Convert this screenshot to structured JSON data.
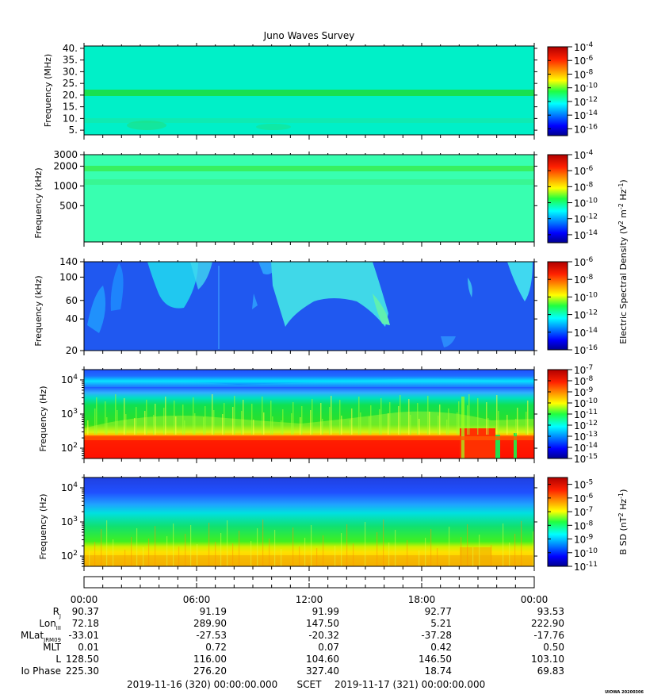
{
  "chart_data": {
    "type": "heatmap",
    "title": "Juno Waves Survey",
    "time_axis": {
      "tick_labels": [
        "00:00",
        "06:00",
        "12:00",
        "18:00",
        "00:00"
      ],
      "start_label": "2019-11-16 (320) 00:00:00.000",
      "mid_label": "SCET",
      "end_label": "2019-11-17 (321) 00:00:00.000"
    },
    "panels": [
      {
        "id": "p1",
        "ylabel": "Frequency (MHz)",
        "ytick_labels": [
          "40.",
          "35.",
          "30.",
          "25.",
          "20.",
          "15.",
          "10.",
          "5."
        ],
        "yscale": "linear",
        "ylim": [
          3,
          41
        ],
        "colorbar_ticks": [
          [
            "10",
            "-4"
          ],
          [
            "10",
            "-6"
          ],
          [
            "10",
            "-8"
          ],
          [
            "10",
            "-10"
          ],
          [
            "10",
            "-12"
          ],
          [
            "10",
            "-14"
          ],
          [
            "10",
            "-16"
          ]
        ],
        "colorbar_range_log10": [
          -17,
          -4
        ],
        "background": "#00f0c8",
        "features": [
          {
            "desc": "band",
            "y_range_mhz": [
              20.5,
              22.5
            ],
            "color": "#18e050"
          }
        ]
      },
      {
        "id": "p2",
        "ylabel": "Frequency (kHz)",
        "ytick_labels": [
          "3000",
          "2000",
          "1000",
          "500"
        ],
        "yscale": "log",
        "ylim_khz": [
          140,
          3000
        ],
        "colorbar_ticks": [
          [
            "10",
            "-4"
          ],
          [
            "10",
            "-6"
          ],
          [
            "10",
            "-8"
          ],
          [
            "10",
            "-10"
          ],
          [
            "10",
            "-12"
          ],
          [
            "10",
            "-14"
          ]
        ],
        "colorbar_range_log10": [
          -15,
          -4
        ],
        "background": "#30ffb0",
        "features": [
          {
            "desc": "band",
            "y_range_khz": [
              1600,
              1800
            ],
            "color": "#30f070"
          },
          {
            "desc": "band",
            "y_range_khz": [
              1000,
              1150
            ],
            "color": "#30f080"
          }
        ]
      },
      {
        "id": "p3",
        "ylabel": "Frequency (kHz)",
        "ytick_labels": [
          "140",
          "100",
          "60",
          "40",
          "20"
        ],
        "yscale": "log",
        "ylim_khz": [
          20,
          140
        ],
        "colorbar_ticks": [
          [
            "10",
            "-6"
          ],
          [
            "10",
            "-8"
          ],
          [
            "10",
            "-10"
          ],
          [
            "10",
            "-12"
          ],
          [
            "10",
            "-14"
          ],
          [
            "10",
            "-16"
          ]
        ],
        "colorbar_range_log10": [
          -16,
          -6
        ],
        "background": "#2060f0"
      },
      {
        "id": "p4",
        "ylabel": "Frequency (Hz)",
        "ytick_labels": [
          [
            "10",
            "4"
          ],
          [
            "10",
            "3"
          ],
          [
            "10",
            "2"
          ]
        ],
        "yscale": "log",
        "ylim_hz": [
          50,
          20000
        ],
        "colorbar_ticks": [
          [
            "10",
            "-7"
          ],
          [
            "10",
            "-8"
          ],
          [
            "10",
            "-9"
          ],
          [
            "10",
            "-10"
          ],
          [
            "10",
            "-11"
          ],
          [
            "10",
            "-12"
          ],
          [
            "10",
            "-13"
          ],
          [
            "10",
            "-14"
          ],
          [
            "10",
            "-15"
          ]
        ],
        "colorbar_range_log10": [
          -15,
          -7
        ]
      },
      {
        "id": "p5",
        "ylabel": "Frequency (Hz)",
        "ytick_labels": [
          [
            "10",
            "4"
          ],
          [
            "10",
            "3"
          ],
          [
            "10",
            "2"
          ]
        ],
        "yscale": "log",
        "ylim_hz": [
          50,
          20000
        ],
        "colorbar_ticks": [
          [
            "10",
            "-5"
          ],
          [
            "10",
            "-6"
          ],
          [
            "10",
            "-7"
          ],
          [
            "10",
            "-8"
          ],
          [
            "10",
            "-9"
          ],
          [
            "10",
            "-10"
          ],
          [
            "10",
            "-11"
          ]
        ],
        "colorbar_range_log10": [
          -11,
          -4.5
        ]
      }
    ],
    "colorbar_side_labels": {
      "electric": "Electric Spectral Density (V2 m-2 Hz-1)",
      "magnetic": "B SD (nT2 Hz-1)"
    },
    "ephemeris": {
      "rows": [
        {
          "label": "R",
          "sub": "J",
          "values": [
            "90.37",
            "91.19",
            "91.99",
            "92.77",
            "93.53"
          ]
        },
        {
          "label": "Lon",
          "sub": "III",
          "values": [
            "72.18",
            "289.90",
            "147.50",
            "5.21",
            "222.90"
          ]
        },
        {
          "label": "MLat",
          "sub": "JRM09",
          "values": [
            "-33.01",
            "-27.53",
            "-20.32",
            "-37.28",
            "-17.76"
          ]
        },
        {
          "label": "MLT",
          "sub": "",
          "values": [
            "0.01",
            "0.72",
            "0.07",
            "0.42",
            "0.50"
          ]
        },
        {
          "label": "L",
          "sub": "",
          "values": [
            "128.50",
            "116.00",
            "104.60",
            "146.50",
            "103.10"
          ]
        },
        {
          "label": "Io Phase",
          "sub": "",
          "values": [
            "225.30",
            "276.20",
            "327.40",
            "18.74",
            "69.83"
          ]
        }
      ]
    },
    "footer_stamp": "UIOWA 20200306"
  }
}
